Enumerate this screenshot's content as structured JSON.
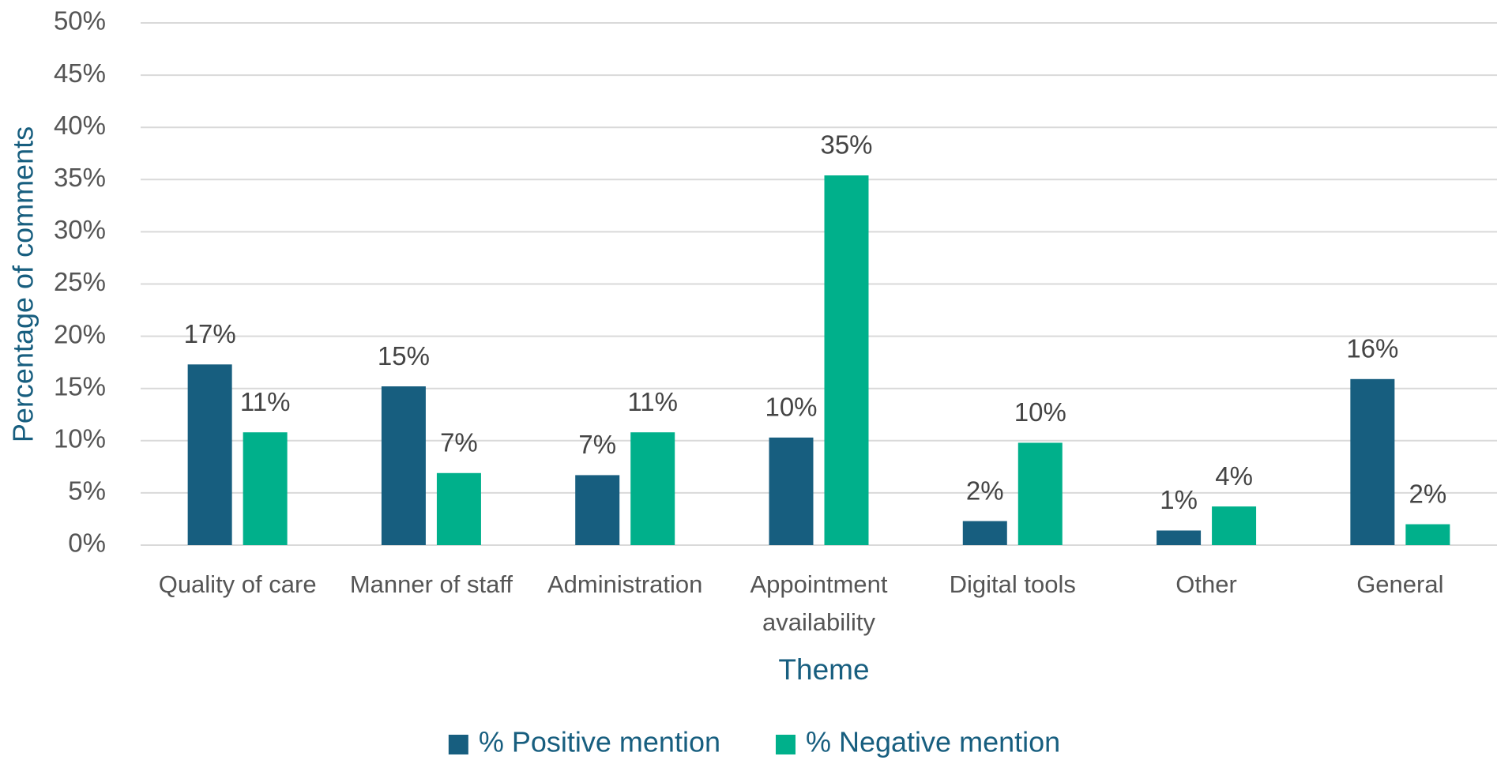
{
  "chart_data": {
    "type": "bar",
    "x_label": "Theme",
    "y_label": "Percentage of comments",
    "categories": [
      "Quality of care",
      "Manner of staff",
      "Administration",
      "Appointment availability",
      "Digital tools",
      "Other",
      "General"
    ],
    "series": [
      {
        "name": "% Positive mention",
        "color": "#175e7f",
        "values": [
          17.3,
          15.2,
          6.7,
          10.3,
          2.3,
          1.4,
          15.9
        ],
        "value_labels": [
          "17%",
          "15%",
          "7%",
          "10%",
          "2%",
          "1%",
          "16%"
        ]
      },
      {
        "name": "% Negative mention",
        "color": "#00b08b",
        "values": [
          10.8,
          6.9,
          10.8,
          35.4,
          9.8,
          3.7,
          2.0
        ],
        "value_labels": [
          "11%",
          "7%",
          "11%",
          "35%",
          "10%",
          "4%",
          "2%"
        ]
      }
    ],
    "ylim": [
      0,
      50
    ],
    "yticks": [
      {
        "value": 0,
        "label": "0%"
      },
      {
        "value": 5,
        "label": "5%"
      },
      {
        "value": 10,
        "label": "10%"
      },
      {
        "value": 15,
        "label": "15%"
      },
      {
        "value": 20,
        "label": "20%"
      },
      {
        "value": 25,
        "label": "25%"
      },
      {
        "value": 30,
        "label": "30%"
      },
      {
        "value": 35,
        "label": "35%"
      },
      {
        "value": 40,
        "label": "40%"
      },
      {
        "value": 45,
        "label": "45%"
      },
      {
        "value": 50,
        "label": "50%"
      }
    ],
    "grid": true,
    "legend": "bottom"
  }
}
